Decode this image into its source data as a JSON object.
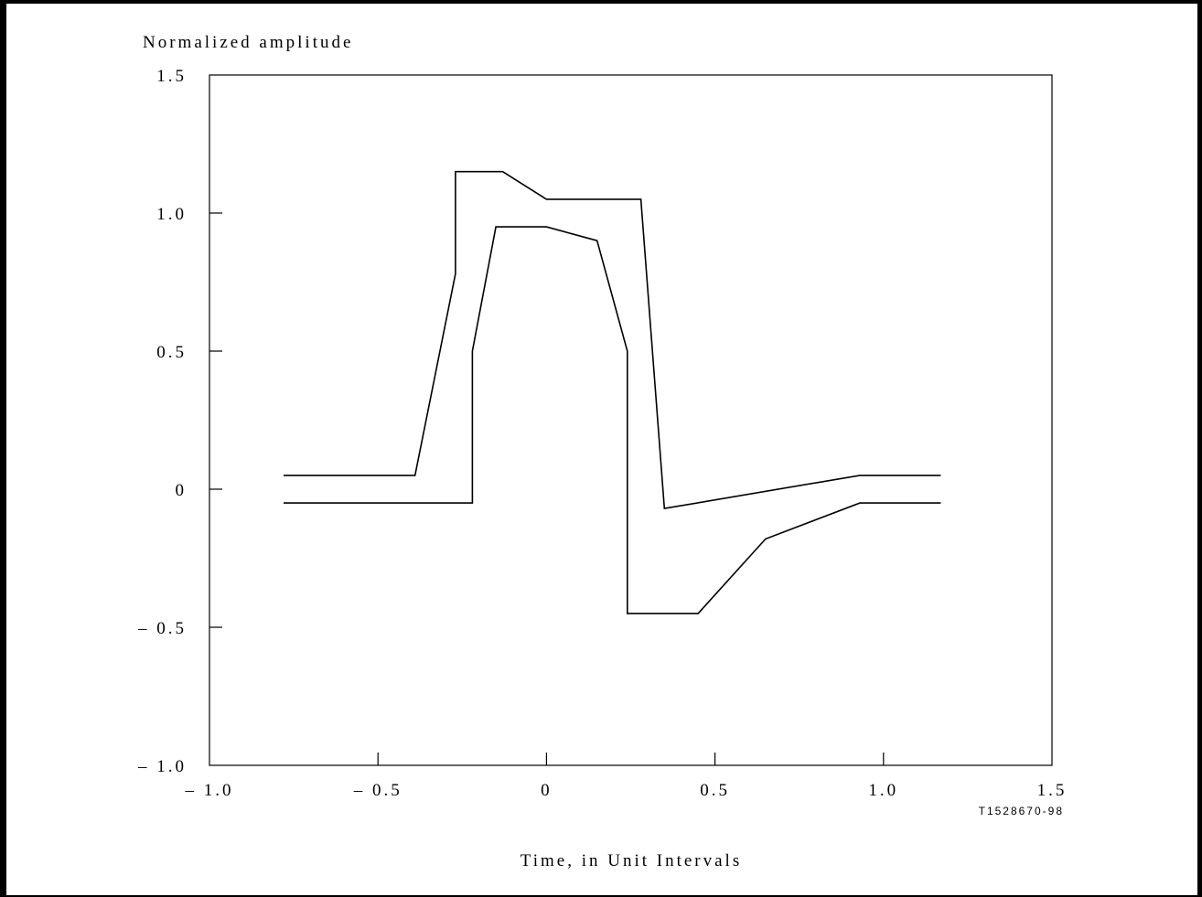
{
  "chart_data": {
    "type": "line",
    "ylabel": "Normalized amplitude",
    "xlabel": "Time, in Unit Intervals",
    "reference": "T1528670-98",
    "xlim": [
      -1.0,
      1.5
    ],
    "ylim": [
      -1.0,
      1.5
    ],
    "x_ticks": [
      -1.0,
      -0.5,
      0,
      0.5,
      1.0,
      1.5
    ],
    "x_tick_labels": [
      "– 1.0",
      "– 0.5",
      "0",
      "0.5",
      "1.0",
      "1.5"
    ],
    "y_ticks": [
      1.5,
      1.0,
      0.5,
      0,
      -0.5,
      -1.0
    ],
    "y_tick_labels": [
      "1.5",
      "1.0",
      "0.5",
      "0",
      "– 0.5",
      "– 1.0"
    ],
    "grid": false,
    "line_color": "#000000",
    "series": [
      {
        "x": [
          -0.78,
          -0.39,
          -0.27,
          -0.27,
          -0.13,
          0.0,
          0.28,
          0.35,
          0.93,
          1.17
        ],
        "y": [
          0.05,
          0.05,
          0.78,
          1.15,
          1.15,
          1.05,
          1.05,
          -0.07,
          0.05,
          0.05
        ]
      },
      {
        "x": [
          -0.78,
          -0.22,
          -0.22,
          -0.15,
          0.0,
          0.15,
          0.24,
          0.24,
          0.45,
          0.65,
          0.93,
          1.17
        ],
        "y": [
          -0.05,
          -0.05,
          0.5,
          0.95,
          0.95,
          0.9,
          0.5,
          -0.45,
          -0.45,
          -0.18,
          -0.05,
          -0.05
        ]
      }
    ]
  }
}
